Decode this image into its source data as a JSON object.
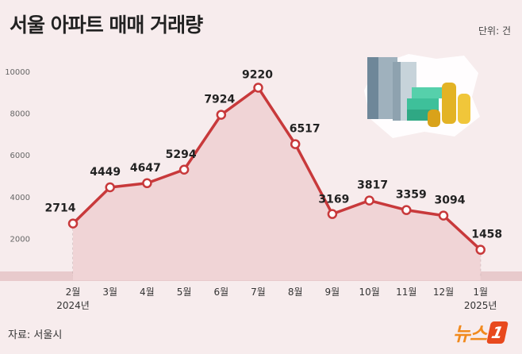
{
  "header": {
    "title": "서울 아파트 매매 거래량",
    "unit": "단위: 건"
  },
  "footer": {
    "source": "자료: 서울시",
    "logo_text": "뉴스",
    "logo_mark": "1"
  },
  "colors": {
    "background": "#f7eced",
    "line": "#c8393b",
    "area": "#f0d4d6",
    "baseline_band": "#e8cacc"
  },
  "illustration": {
    "icon": "apartment-buildings-and-money-icon"
  },
  "chart_data": {
    "type": "line",
    "title": "서울 아파트 매매 거래량",
    "unit": "건",
    "categories": [
      "2월",
      "3월",
      "4월",
      "5월",
      "6월",
      "7월",
      "8월",
      "9월",
      "10월",
      "11월",
      "12월",
      "1월"
    ],
    "year_labels": [
      {
        "index": 0,
        "label": "2024년"
      },
      {
        "index": 11,
        "label": "2025년"
      }
    ],
    "series": [
      {
        "values": [
          2714,
          4449,
          4647,
          5294,
          7924,
          9220,
          6517,
          3169,
          3817,
          3359,
          3094,
          1458
        ]
      }
    ],
    "yticks": [
      2000,
      4000,
      6000,
      8000,
      10000
    ],
    "yticklabels": [
      "2000",
      "4000",
      "6000",
      "8000",
      "10000"
    ],
    "ylim": [
      0,
      10000
    ],
    "grid": "vertical dashed",
    "legend": "none"
  }
}
